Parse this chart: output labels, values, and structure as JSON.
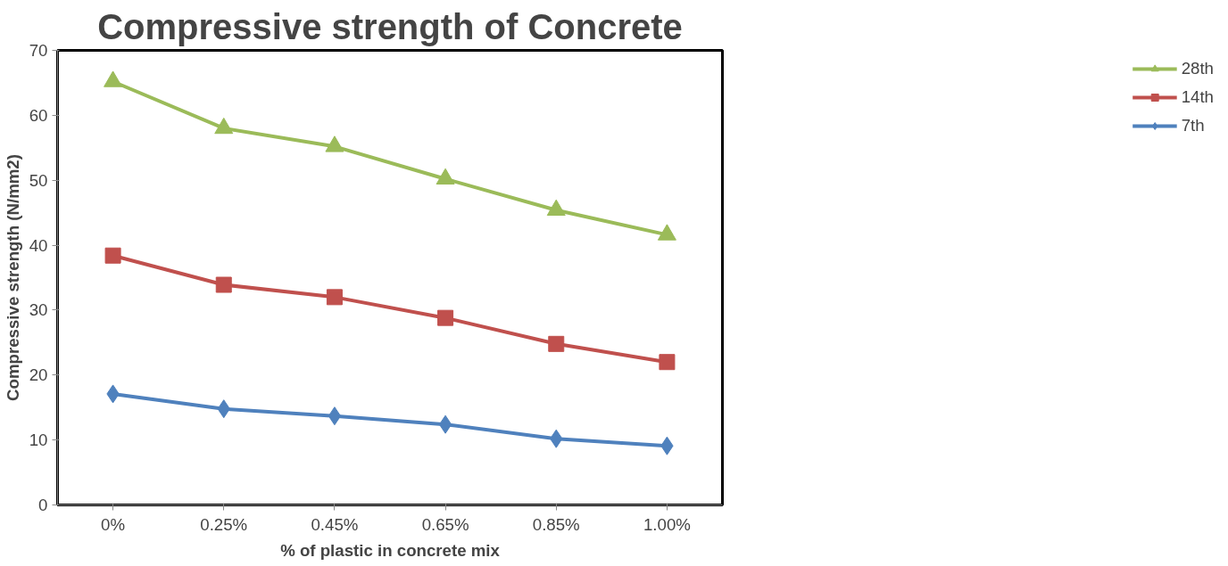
{
  "chart_data": {
    "type": "line",
    "title": "Compressive strength of Concrete",
    "xlabel": "% of plastic in concrete mix",
    "ylabel": "Compressive strength (N/mm2)",
    "categories": [
      "0%",
      "0.25%",
      "0.45%",
      "0.65%",
      "0.85%",
      "1.00%"
    ],
    "series": [
      {
        "name": "28th",
        "color": "#9bbb59",
        "marker": "triangle",
        "values": [
          65.2,
          58.0,
          55.2,
          50.2,
          45.4,
          41.6
        ]
      },
      {
        "name": "14th",
        "color": "#c0504d",
        "marker": "square",
        "values": [
          38.4,
          33.9,
          32.0,
          28.8,
          24.8,
          22.0
        ]
      },
      {
        "name": "7th",
        "color": "#4f81bd",
        "marker": "diamond",
        "values": [
          17.1,
          14.8,
          13.7,
          12.4,
          10.2,
          9.1
        ]
      }
    ],
    "ylim": [
      0,
      70
    ],
    "yticks": [
      0,
      10,
      20,
      30,
      40,
      50,
      60,
      70
    ],
    "grid": false,
    "legend": "right",
    "line_style": "solid"
  }
}
